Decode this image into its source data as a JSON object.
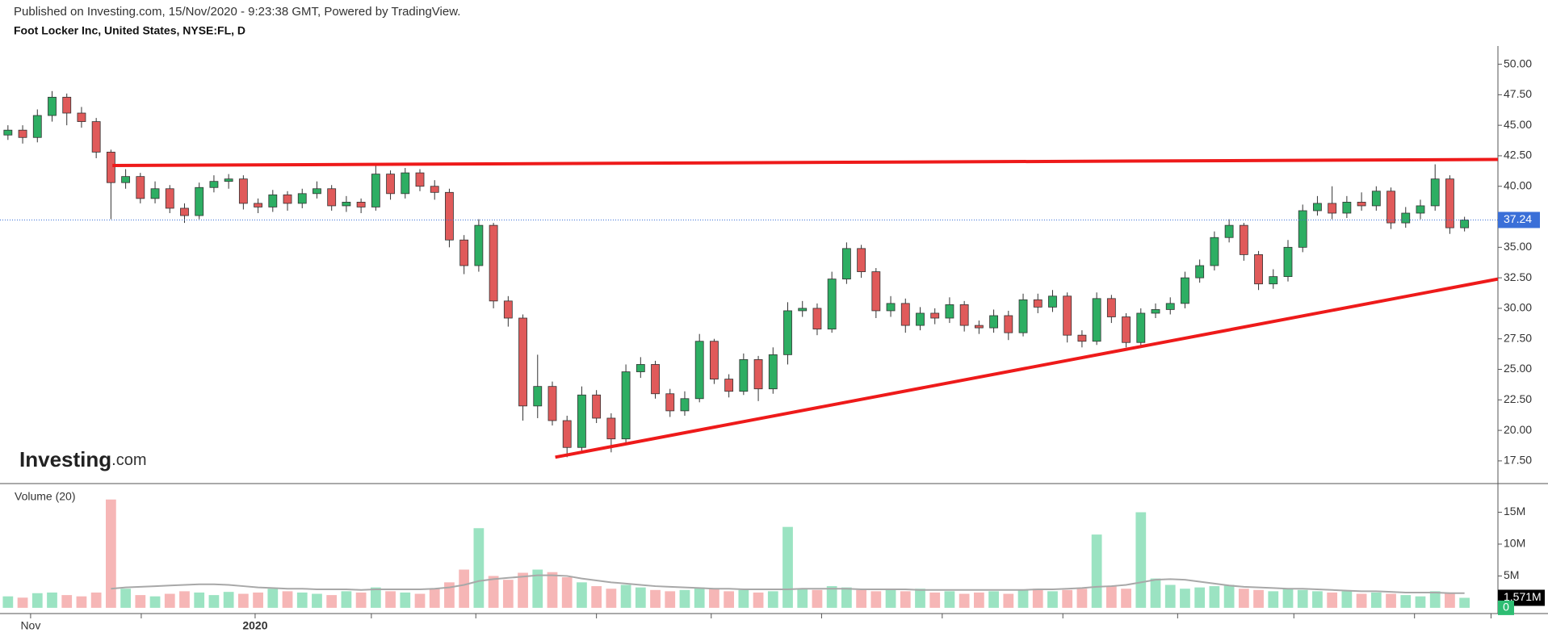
{
  "header": {
    "published": "Published on Investing.com, 15/Nov/2020 - 9:23:38 GMT, Powered by TradingView.",
    "instrument": "Foot Locker Inc, United States, NYSE:FL, D"
  },
  "logo": {
    "main": "Investing",
    "suffix": ".com"
  },
  "chart_data": [
    {
      "type": "candlestick",
      "open": [
        44.2,
        44.6,
        44.0,
        45.8,
        47.3,
        46.0,
        45.3,
        42.8,
        40.3,
        40.8,
        39.0,
        39.8,
        38.2,
        37.6,
        39.9,
        40.4,
        40.6,
        38.6,
        38.3,
        39.3,
        38.6,
        39.4,
        39.8,
        38.4,
        38.7,
        38.3,
        41.0,
        39.4,
        41.1,
        40.0,
        39.5,
        35.6,
        33.5,
        36.8,
        30.6,
        29.2,
        22.0,
        23.6,
        20.8,
        18.6,
        22.9,
        21.0,
        19.3,
        24.8,
        25.4,
        23.0,
        21.6,
        22.6,
        27.3,
        24.2,
        23.2,
        25.8,
        23.4,
        26.2,
        29.8,
        30.0,
        28.3,
        32.4,
        34.9,
        33.0,
        29.8,
        30.4,
        28.6,
        29.6,
        29.2,
        30.3,
        28.6,
        28.4,
        29.4,
        28.0,
        30.7,
        30.1,
        31.0,
        27.8,
        27.3,
        30.8,
        29.3,
        27.2,
        29.6,
        29.9,
        30.4,
        32.5,
        33.5,
        35.8,
        36.8,
        34.4,
        32.0,
        32.6,
        35.0,
        38.0,
        38.6,
        37.8,
        38.7,
        38.4,
        39.6,
        37.0,
        37.8,
        38.4,
        40.6,
        36.6
      ],
      "high": [
        45.0,
        45.0,
        46.3,
        47.8,
        47.6,
        46.5,
        45.6,
        43.0,
        41.4,
        41.1,
        40.4,
        40.1,
        38.6,
        40.3,
        40.9,
        41.0,
        40.9,
        39.0,
        39.7,
        39.6,
        39.8,
        40.4,
        40.1,
        39.2,
        39.0,
        41.8,
        41.3,
        41.5,
        41.4,
        40.5,
        39.8,
        36.0,
        37.3,
        37.0,
        31.0,
        29.5,
        26.2,
        24.0,
        21.2,
        23.6,
        23.3,
        21.4,
        25.4,
        26.0,
        25.7,
        23.4,
        23.2,
        27.9,
        27.5,
        24.6,
        26.3,
        26.1,
        26.8,
        30.5,
        30.6,
        30.4,
        33.0,
        35.4,
        35.2,
        33.3,
        31.0,
        30.8,
        30.1,
        30.0,
        30.9,
        30.6,
        29.0,
        29.9,
        29.8,
        31.2,
        31.2,
        31.5,
        31.3,
        28.2,
        31.3,
        31.1,
        29.6,
        30.0,
        30.4,
        30.9,
        33.0,
        34.0,
        36.3,
        37.3,
        37.0,
        34.7,
        33.2,
        35.6,
        38.5,
        39.2,
        40.0,
        39.2,
        39.5,
        40.0,
        39.9,
        38.3,
        38.9,
        41.8,
        40.9,
        37.5
      ],
      "low": [
        43.8,
        43.5,
        43.6,
        45.3,
        45.0,
        44.8,
        42.3,
        37.3,
        39.8,
        38.6,
        38.6,
        37.8,
        37.0,
        37.3,
        39.5,
        39.8,
        38.1,
        37.8,
        37.9,
        38.0,
        38.2,
        39.0,
        38.0,
        37.9,
        37.8,
        38.0,
        38.9,
        39.0,
        39.6,
        38.9,
        35.0,
        32.8,
        33.0,
        30.0,
        28.5,
        20.8,
        21.0,
        20.4,
        17.8,
        18.3,
        20.6,
        18.2,
        19.0,
        24.3,
        22.6,
        21.1,
        21.2,
        22.3,
        23.8,
        22.7,
        22.9,
        22.4,
        23.0,
        25.4,
        29.3,
        27.8,
        28.0,
        32.0,
        32.5,
        29.2,
        29.3,
        28.0,
        28.2,
        28.7,
        28.8,
        28.1,
        27.9,
        28.0,
        27.4,
        27.7,
        29.6,
        29.7,
        27.2,
        26.8,
        27.0,
        28.8,
        26.8,
        26.9,
        29.2,
        29.5,
        30.0,
        32.1,
        33.1,
        35.4,
        33.9,
        31.5,
        31.6,
        32.2,
        34.6,
        37.6,
        37.3,
        37.4,
        38.0,
        38.0,
        36.5,
        36.6,
        37.3,
        38.0,
        36.1,
        36.3
      ],
      "close": [
        44.6,
        44.0,
        45.8,
        47.3,
        46.0,
        45.3,
        42.8,
        40.3,
        40.8,
        39.0,
        39.8,
        38.2,
        37.6,
        39.9,
        40.4,
        40.6,
        38.6,
        38.3,
        39.3,
        38.6,
        39.4,
        39.8,
        38.4,
        38.7,
        38.3,
        41.0,
        39.4,
        41.1,
        40.0,
        39.5,
        35.6,
        33.5,
        36.8,
        30.6,
        29.2,
        22.0,
        23.6,
        20.8,
        18.6,
        22.9,
        21.0,
        19.3,
        24.8,
        25.4,
        23.0,
        21.6,
        22.6,
        27.3,
        24.2,
        23.2,
        25.8,
        23.4,
        26.2,
        29.8,
        30.0,
        28.3,
        32.4,
        34.9,
        33.0,
        29.8,
        30.4,
        28.6,
        29.6,
        29.2,
        30.3,
        28.6,
        28.4,
        29.4,
        28.0,
        30.7,
        30.1,
        31.0,
        27.8,
        27.3,
        30.8,
        29.3,
        27.2,
        29.6,
        29.9,
        30.4,
        32.5,
        33.5,
        35.8,
        36.8,
        34.4,
        32.0,
        32.6,
        35.0,
        38.0,
        38.6,
        37.8,
        38.7,
        38.4,
        39.6,
        37.0,
        37.8,
        38.4,
        40.6,
        36.6,
        37.24
      ],
      "up_color": "#2dae63",
      "down_color": "#e05a5a",
      "wick_color": "#333333",
      "ylim": [
        15.64,
        51.46
      ],
      "yticks": [
        {
          "value": 17.5,
          "label": "17.50"
        },
        {
          "value": 20,
          "label": "20.00"
        },
        {
          "value": 22.5,
          "label": "22.50"
        },
        {
          "value": 25,
          "label": "25.00"
        },
        {
          "value": 27.5,
          "label": "27.50"
        },
        {
          "value": 30,
          "label": "30.00"
        },
        {
          "value": 32.5,
          "label": "32.50"
        },
        {
          "value": 35,
          "label": "35.00"
        },
        {
          "value": 37.5,
          "label": "37.50"
        },
        {
          "value": 40,
          "label": "40.00"
        },
        {
          "value": 42.5,
          "label": "42.50"
        },
        {
          "value": 45,
          "label": "45.00"
        },
        {
          "value": 47.5,
          "label": "47.50"
        },
        {
          "value": 50,
          "label": "50.00"
        }
      ],
      "last_price": 37.24,
      "last_price_color": "#3a6fd8",
      "trendlines": [
        {
          "from": [
            7.1,
            41.7
          ],
          "to": [
            101.27,
            42.2
          ],
          "color": "#ee1a1a"
        },
        {
          "from": [
            37.2,
            17.8
          ],
          "to": [
            101.27,
            32.4
          ],
          "color": "#ee1a1a"
        }
      ]
    },
    {
      "type": "volume",
      "title": "Volume (20)",
      "values": [
        1.8,
        1.6,
        2.3,
        2.4,
        2.0,
        1.8,
        2.4,
        17.0,
        3.0,
        2.0,
        1.8,
        2.2,
        2.6,
        2.4,
        2.0,
        2.5,
        2.2,
        2.4,
        3.0,
        2.6,
        2.4,
        2.2,
        2.0,
        2.6,
        2.4,
        3.2,
        2.6,
        2.4,
        2.2,
        3.0,
        4.0,
        6.0,
        12.5,
        5.0,
        4.4,
        5.5,
        6.0,
        5.6,
        4.8,
        4.0,
        3.4,
        3.0,
        3.6,
        3.2,
        2.8,
        2.6,
        2.8,
        3.2,
        3.0,
        2.6,
        2.8,
        2.4,
        2.6,
        12.7,
        3.0,
        2.8,
        3.4,
        3.2,
        2.8,
        2.6,
        2.8,
        2.6,
        3.0,
        2.4,
        2.6,
        2.2,
        2.4,
        2.6,
        2.2,
        2.8,
        3.0,
        2.6,
        2.8,
        3.0,
        11.5,
        3.4,
        3.0,
        15.0,
        4.6,
        3.6,
        3.0,
        3.2,
        3.4,
        3.6,
        3.0,
        2.8,
        2.6,
        3.0,
        2.8,
        2.6,
        2.4,
        2.6,
        2.2,
        2.4,
        2.2,
        2.0,
        1.8,
        2.6,
        2.4,
        1.571
      ],
      "ma": [
        null,
        null,
        null,
        null,
        null,
        null,
        null,
        3.0,
        3.2,
        3.3,
        3.4,
        3.5,
        3.6,
        3.7,
        3.7,
        3.6,
        3.4,
        3.2,
        3.1,
        3.0,
        3.0,
        2.9,
        2.9,
        2.9,
        2.8,
        2.9,
        2.9,
        2.9,
        2.9,
        3.0,
        3.2,
        3.6,
        4.2,
        4.5,
        4.7,
        4.9,
        5.1,
        5.1,
        5.0,
        4.6,
        4.3,
        4.0,
        3.8,
        3.6,
        3.4,
        3.3,
        3.2,
        3.1,
        3.0,
        3.0,
        2.9,
        2.9,
        2.9,
        2.9,
        3.0,
        3.0,
        3.0,
        3.0,
        2.9,
        2.9,
        2.9,
        2.9,
        2.8,
        2.8,
        2.8,
        2.8,
        2.8,
        2.8,
        2.8,
        2.8,
        2.9,
        2.9,
        3.0,
        3.1,
        3.3,
        3.4,
        3.6,
        4.0,
        4.4,
        4.5,
        4.4,
        4.1,
        3.8,
        3.5,
        3.3,
        3.2,
        3.1,
        3.0,
        3.0,
        2.9,
        2.8,
        2.7,
        2.6,
        2.6,
        2.5,
        2.4,
        2.4,
        2.4,
        2.3,
        2.3
      ],
      "up_color": "#9be3c2",
      "down_color": "#f6b6b6",
      "ma_color": "#a8a8a8",
      "ylim": [
        -0.9,
        19.5
      ],
      "yticks": [
        {
          "value": 5,
          "label": "5M"
        },
        {
          "value": 10,
          "label": "10M"
        },
        {
          "value": 15,
          "label": "15M"
        }
      ],
      "last_volume": {
        "value": 1.571,
        "label": "1.571M"
      },
      "zero_tag": 0,
      "zero_tag_color": "#2ebd73",
      "xlim": [
        -0.54,
        101.27
      ],
      "xticks": [
        {
          "value": 1.54,
          "label": "Nov"
        },
        {
          "value": 9.06,
          "label": null
        },
        {
          "value": 16.8,
          "label": "2020"
        },
        {
          "value": 24.7,
          "label": null
        },
        {
          "value": 31.8,
          "label": null
        },
        {
          "value": 40.0,
          "label": null
        },
        {
          "value": 47.8,
          "label": null
        },
        {
          "value": 55.3,
          "label": null
        },
        {
          "value": 63.5,
          "label": null
        },
        {
          "value": 71.7,
          "label": null
        },
        {
          "value": 79.5,
          "label": null
        },
        {
          "value": 87.4,
          "label": null
        },
        {
          "value": 95.6,
          "label": null
        },
        {
          "value": 100.8,
          "label": null
        }
      ]
    }
  ]
}
